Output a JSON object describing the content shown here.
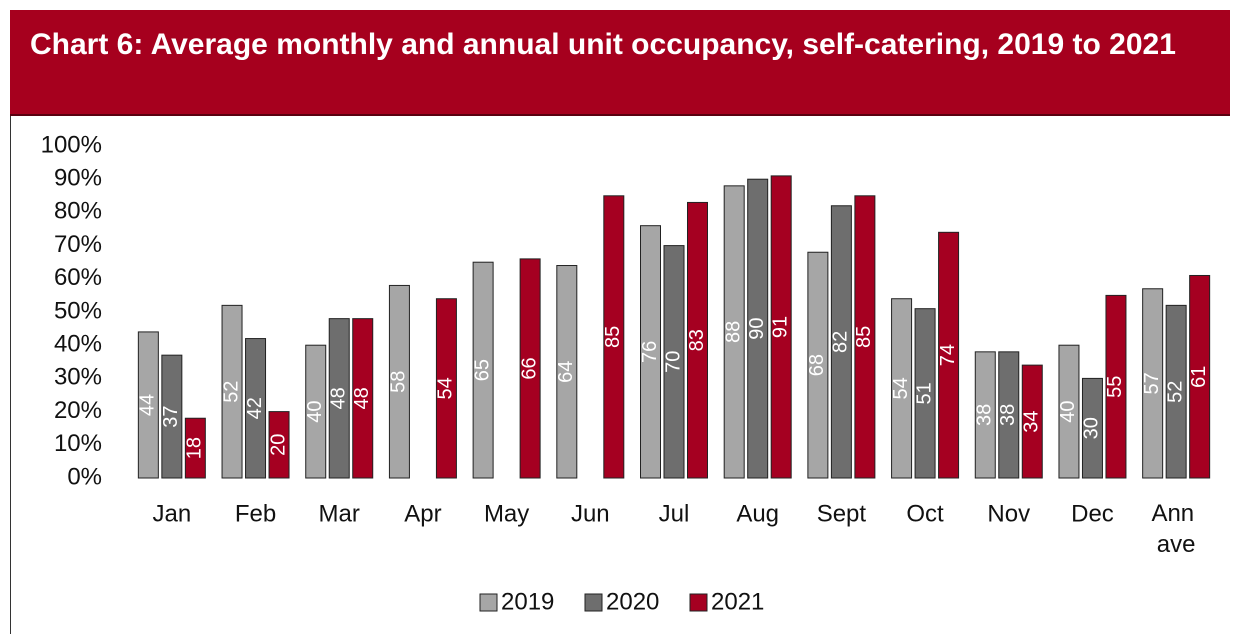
{
  "chart_data": {
    "type": "bar",
    "title": "Chart 6: Average monthly and annual unit occupancy, self-catering, 2019 to 2021",
    "categories": [
      "Jan",
      "Feb",
      "Mar",
      "Apr",
      "May",
      "Jun",
      "Jul",
      "Aug",
      "Sept",
      "Oct",
      "Nov",
      "Dec",
      "Ann ave"
    ],
    "series": [
      {
        "name": "2019",
        "color": "#a6a6a6",
        "values": [
          44,
          52,
          40,
          58,
          65,
          64,
          76,
          88,
          68,
          54,
          38,
          40,
          57
        ]
      },
      {
        "name": "2020",
        "color": "#6e6e6e",
        "values": [
          37,
          42,
          48,
          null,
          null,
          null,
          70,
          90,
          82,
          51,
          38,
          30,
          52
        ]
      },
      {
        "name": "2021",
        "color": "#a50021",
        "values": [
          18,
          20,
          48,
          54,
          66,
          85,
          83,
          91,
          85,
          74,
          34,
          55,
          61
        ]
      }
    ],
    "ylim": [
      0,
      100
    ],
    "yticks": [
      {
        "value": 0,
        "label": "0%"
      },
      {
        "value": 10,
        "label": "10%"
      },
      {
        "value": 20,
        "label": "20%"
      },
      {
        "value": 30,
        "label": "30%"
      },
      {
        "value": 40,
        "label": "40%"
      },
      {
        "value": 50,
        "label": "50%"
      },
      {
        "value": 60,
        "label": "60%"
      },
      {
        "value": 70,
        "label": "70%"
      },
      {
        "value": 80,
        "label": "80%"
      },
      {
        "value": 90,
        "label": "90%"
      },
      {
        "value": 100,
        "label": "100%"
      }
    ],
    "legend": "bottom"
  }
}
